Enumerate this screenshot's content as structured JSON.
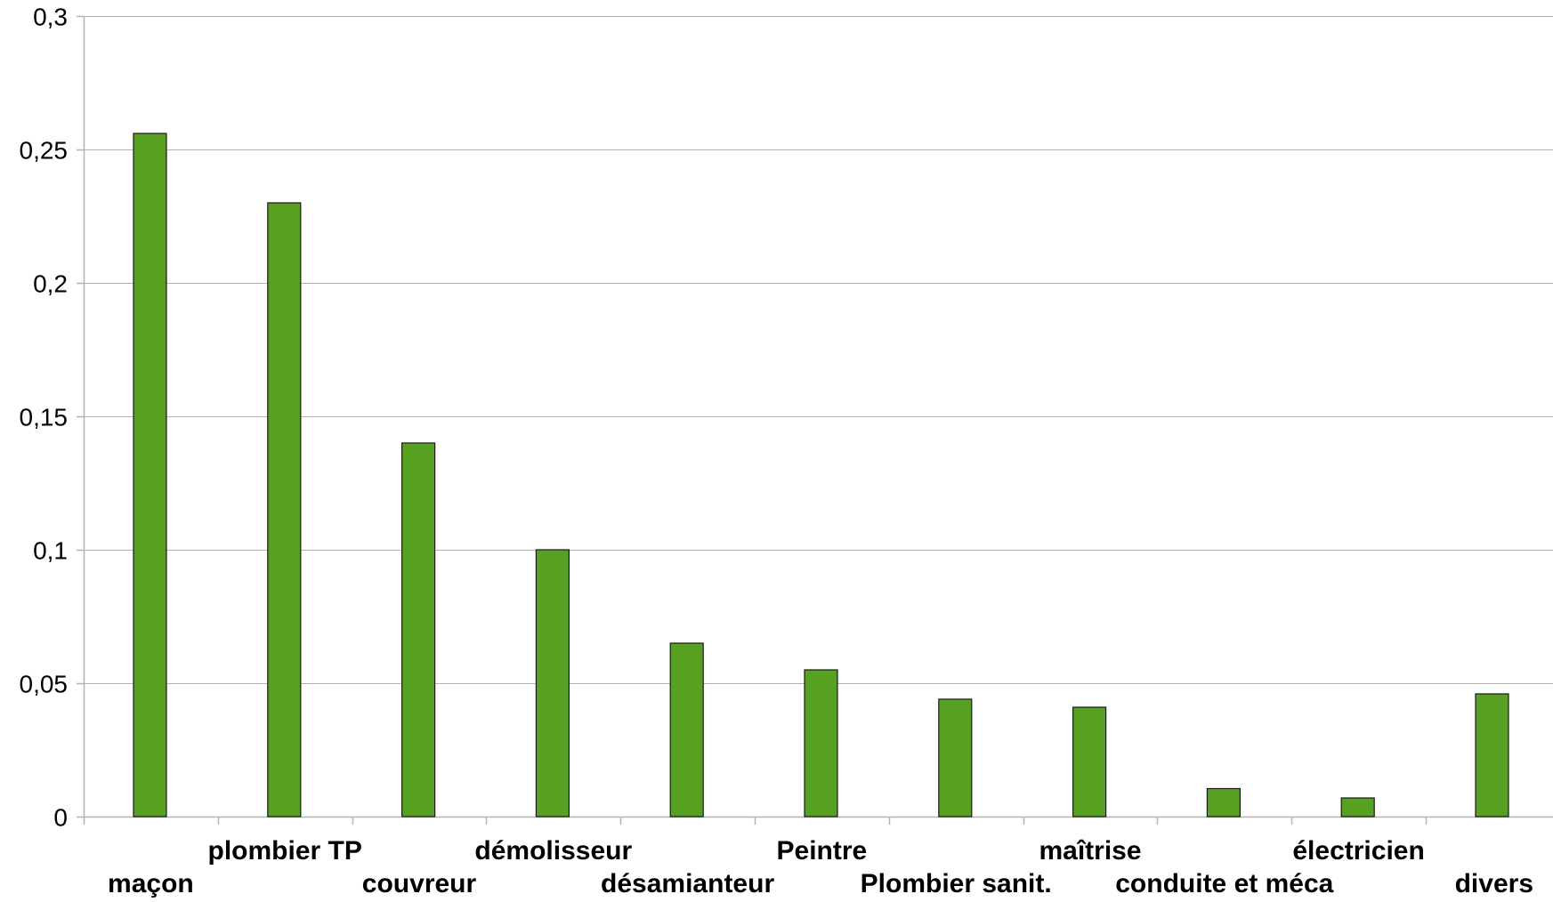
{
  "chart_data": {
    "type": "bar",
    "title": "",
    "xlabel": "",
    "ylabel": "",
    "categories": [
      "maçon",
      "plombier TP",
      "couvreur",
      "démolisseur",
      "désamianteur",
      "Peintre",
      "Plombier sanit.",
      "maîtrise",
      "conduite et méca",
      "électricien",
      "divers"
    ],
    "values": [
      0.256,
      0.23,
      0.14,
      0.1,
      0.065,
      0.055,
      0.044,
      0.041,
      0.0105,
      0.007,
      0.046
    ],
    "ylim": [
      0,
      0.3
    ],
    "yticks": [
      0,
      0.05,
      0.1,
      0.15,
      0.2,
      0.25,
      0.3
    ],
    "ytick_labels": [
      "0",
      "0,05",
      "0,1",
      "0,15",
      "0,2",
      "0,25",
      "0,3"
    ],
    "grid": true,
    "legend": "none",
    "bar_color": "#58a021"
  }
}
